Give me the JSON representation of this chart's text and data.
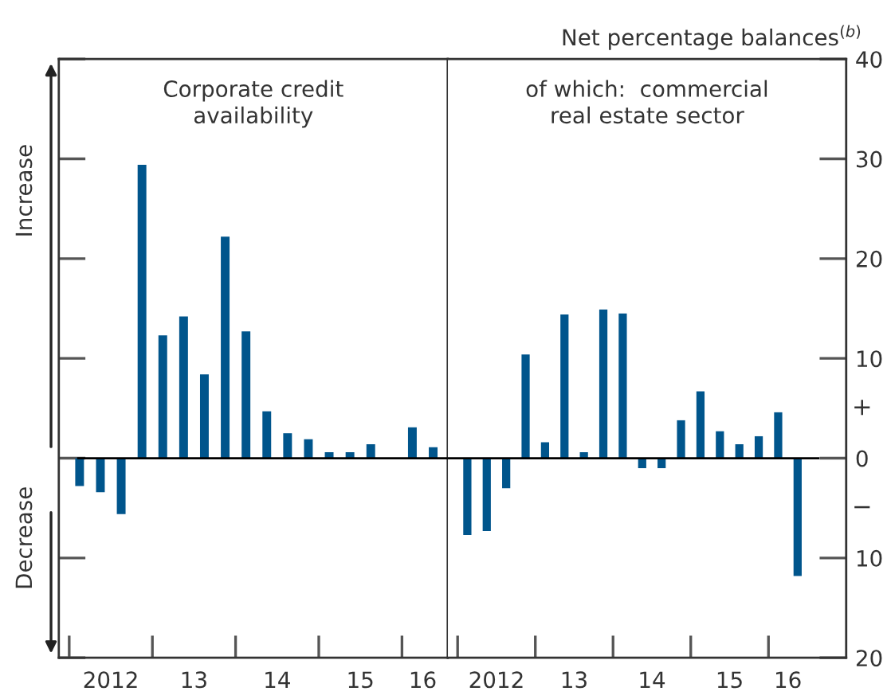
{
  "chart_data": [
    {
      "type": "bar",
      "title": "Corporate credit\navailability",
      "categories": [
        null,
        "2012",
        null,
        null,
        null,
        "13",
        null,
        null,
        null,
        "14",
        null,
        null,
        null,
        "15",
        null,
        null,
        "16",
        null
      ],
      "series": [
        {
          "color": "#00558c",
          "values": [
            -2.8,
            -3.4,
            -5.6,
            29.4,
            12.3,
            14.2,
            8.4,
            22.2,
            12.7,
            4.7,
            2.5,
            1.9,
            0.6,
            0.6,
            1.4,
            null,
            3.1,
            1.1
          ]
        }
      ],
      "ylim": [
        -20,
        40
      ],
      "tick_labels": "x",
      "grid": false,
      "legend": false,
      "ref_lines": [
        {
          "axis": "y",
          "value": 0,
          "color": "#000000"
        }
      ],
      "annotations": [
        "Increase",
        "Decrease"
      ]
    },
    {
      "type": "bar",
      "title": "of which:  commercial\nreal estate sector",
      "ylabel": "Net percentage balances$^{(b)}$",
      "categories": [
        null,
        "2012",
        null,
        null,
        null,
        "13",
        null,
        null,
        null,
        "14",
        null,
        null,
        null,
        "15",
        null,
        null,
        "16",
        null
      ],
      "series": [
        {
          "color": "#00558c",
          "values": [
            -7.7,
            -7.3,
            -3.0,
            10.4,
            1.6,
            14.4,
            0.6,
            14.9,
            14.5,
            -1.0,
            -1.0,
            3.8,
            6.7,
            2.7,
            1.4,
            2.2,
            4.6,
            -11.8
          ]
        }
      ],
      "ylim": [
        -20,
        40
      ],
      "yticks": [
        {
          "value": -20,
          "label": "20"
        },
        {
          "value": -10,
          "label": "10"
        },
        0,
        10,
        20,
        30,
        40
      ],
      "grid": false,
      "legend": false,
      "ref_lines": [
        {
          "axis": "y",
          "value": 0,
          "color": "#000000"
        }
      ],
      "annotations": [
        "+",
        "−"
      ]
    }
  ]
}
